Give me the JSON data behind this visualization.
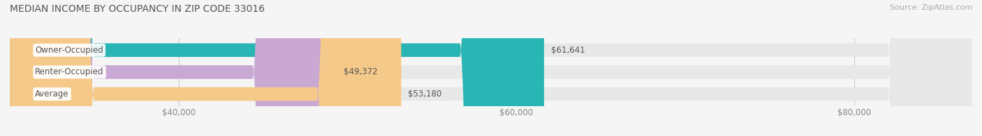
{
  "title": "MEDIAN INCOME BY OCCUPANCY IN ZIP CODE 33016",
  "source": "Source: ZipAtlas.com",
  "categories": [
    "Owner-Occupied",
    "Renter-Occupied",
    "Average"
  ],
  "values": [
    61641,
    49372,
    53180
  ],
  "bar_colors": [
    "#2ab5b5",
    "#c9a8d4",
    "#f5c98a"
  ],
  "value_labels": [
    "$61,641",
    "$49,372",
    "$53,180"
  ],
  "xlim_min": 30000,
  "xlim_max": 87000,
  "xticks": [
    40000,
    60000,
    80000
  ],
  "xtick_labels": [
    "$40,000",
    "$60,000",
    "$80,000"
  ],
  "background_color": "#f5f5f5",
  "bar_background_color": "#e8e8e8",
  "title_fontsize": 10,
  "label_fontsize": 8.5,
  "value_fontsize": 8.5,
  "source_fontsize": 8
}
